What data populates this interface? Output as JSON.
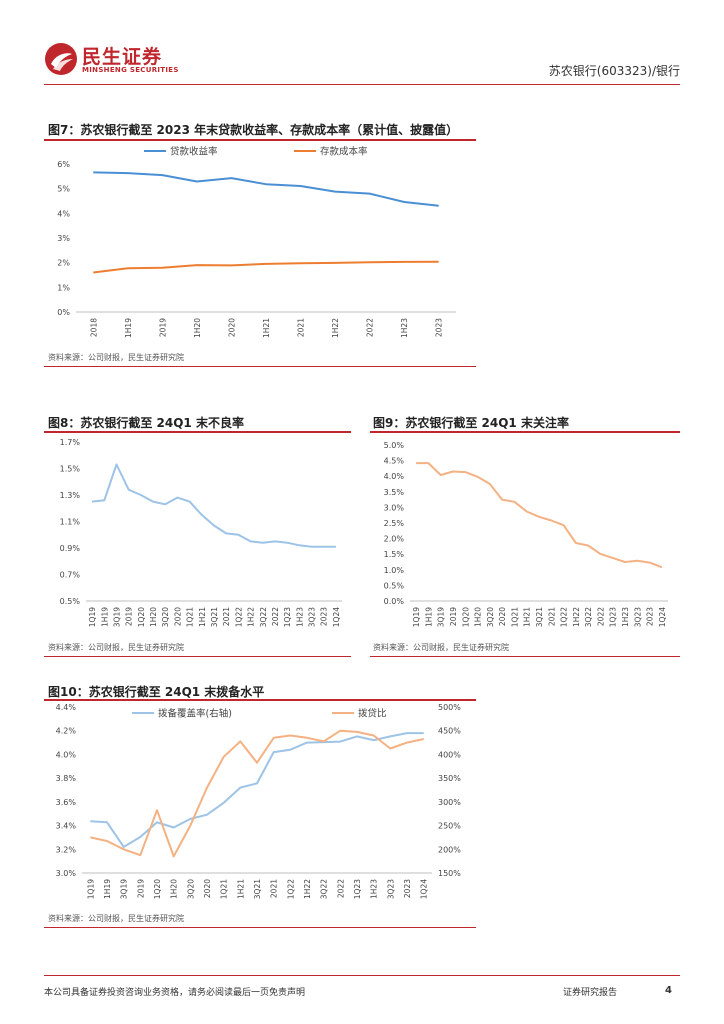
{
  "header": {
    "brand_cn": "民生证券",
    "brand_en": "MINSHENG SECURITIES",
    "report_subject": "苏农银行(603323)/银行",
    "brand_color": "#c0272d"
  },
  "figures": {
    "fig7": {
      "title": "图7：苏农银行截至 2023 年末贷款收益率、存款成本率（累计值、披露值）",
      "source": "资料来源：公司财报，民生证券研究院"
    },
    "fig8": {
      "title": "图8：苏农银行截至 24Q1 末不良率",
      "source": "资料来源：公司财报，民生证券研究院"
    },
    "fig9": {
      "title": "图9：苏农银行截至 24Q1 末关注率",
      "source": "资料来源：公司财报，民生证券研究院"
    },
    "fig10": {
      "title": "图10：苏农银行截至 24Q1 末拨备水平",
      "source": "资料来源：公司财报，民生证券研究院"
    }
  },
  "footer": {
    "disclaimer": "本公司具备证券投资咨询业务资格，请务必阅读最后一页免责声明",
    "report_type": "证券研究报告",
    "page_number": "4"
  },
  "chart_data": [
    {
      "id": "fig7",
      "type": "line",
      "title": "图7：苏农银行截至 2023 年末贷款收益率、存款成本率（累计值、披露值）",
      "categories": [
        "2018",
        "1H19",
        "2019",
        "1H20",
        "2020",
        "1H21",
        "2021",
        "1H22",
        "2022",
        "1H23",
        "2023"
      ],
      "ylim": [
        0,
        6
      ],
      "yticks": [
        0,
        1,
        2,
        3,
        4,
        5,
        6
      ],
      "ytick_suffix": "%",
      "legend_position": "top",
      "series": [
        {
          "name": "贷款收益率",
          "color": "#4a8fd4",
          "axis": "left",
          "values": [
            5.66,
            5.63,
            5.55,
            5.29,
            5.43,
            5.18,
            5.11,
            4.88,
            4.8,
            4.46,
            4.31
          ]
        },
        {
          "name": "存款成本率",
          "color": "#ed7d31",
          "axis": "left",
          "values": [
            1.6,
            1.77,
            1.79,
            1.9,
            1.89,
            1.95,
            1.98,
            1.99,
            2.02,
            2.03,
            2.04
          ]
        }
      ]
    },
    {
      "id": "fig8",
      "type": "line",
      "title": "图8：苏农银行截至 24Q1 末不良率",
      "categories": [
        "1Q19",
        "1H19",
        "3Q19",
        "2019",
        "1Q20",
        "1H20",
        "3Q20",
        "2020",
        "1Q21",
        "1H21",
        "3Q21",
        "2021",
        "1Q22",
        "1H22",
        "3Q22",
        "2022",
        "1Q23",
        "1H23",
        "3Q23",
        "2023",
        "1Q24"
      ],
      "ylim": [
        0.5,
        1.7
      ],
      "yticks": [
        "0.5%",
        "0.7%",
        "0.9%",
        "1.1%",
        "1.3%",
        "1.5%",
        "1.7%"
      ],
      "ytick_values": [
        0.5,
        0.7,
        0.9,
        1.1,
        1.3,
        1.5,
        1.7
      ],
      "series": [
        {
          "name": "不良率",
          "color": "#9dc3e6",
          "values": [
            1.25,
            1.26,
            1.53,
            1.34,
            1.3,
            1.25,
            1.23,
            1.28,
            1.25,
            1.15,
            1.07,
            1.01,
            1.0,
            0.95,
            0.94,
            0.95,
            0.94,
            0.92,
            0.91,
            0.91,
            0.91
          ]
        }
      ]
    },
    {
      "id": "fig9",
      "type": "line",
      "title": "图9：苏农银行截至 24Q1 末关注率",
      "categories": [
        "1Q19",
        "1H19",
        "3Q19",
        "2019",
        "1Q20",
        "1H20",
        "3Q20",
        "2020",
        "1Q21",
        "1H21",
        "3Q21",
        "2021",
        "1Q22",
        "1H22",
        "3Q22",
        "2022",
        "1Q23",
        "1H23",
        "3Q23",
        "2023",
        "1Q24"
      ],
      "ylim": [
        0,
        5
      ],
      "yticks": [
        "0.0%",
        "0.5%",
        "1.0%",
        "1.5%",
        "2.0%",
        "2.5%",
        "3.0%",
        "3.5%",
        "4.0%",
        "4.5%",
        "5.0%"
      ],
      "ytick_values": [
        0,
        0.5,
        1.0,
        1.5,
        2.0,
        2.5,
        3.0,
        3.5,
        4.0,
        4.5,
        5.0
      ],
      "series": [
        {
          "name": "关注率",
          "color": "#f4b183",
          "values": [
            4.42,
            4.42,
            4.04,
            4.15,
            4.13,
            3.98,
            3.75,
            3.25,
            3.18,
            2.87,
            2.7,
            2.58,
            2.43,
            1.86,
            1.78,
            1.51,
            1.38,
            1.25,
            1.29,
            1.23,
            1.08
          ]
        }
      ]
    },
    {
      "id": "fig10",
      "type": "line",
      "title": "图10：苏农银行截至 24Q1 末拨备水平",
      "categories": [
        "1Q19",
        "1H19",
        "3Q19",
        "2019",
        "1Q20",
        "1H20",
        "3Q20",
        "2020",
        "1Q21",
        "1H21",
        "3Q21",
        "2021",
        "1Q22",
        "1H22",
        "3Q22",
        "2022",
        "1Q23",
        "1H23",
        "3Q23",
        "2023",
        "1Q24"
      ],
      "ylim_left": [
        3.0,
        4.4
      ],
      "yticks_left": [
        "3.0%",
        "3.2%",
        "3.4%",
        "3.6%",
        "3.8%",
        "4.0%",
        "4.2%",
        "4.4%"
      ],
      "ytick_values_left": [
        3.0,
        3.2,
        3.4,
        3.6,
        3.8,
        4.0,
        4.2,
        4.4
      ],
      "ylim_right": [
        150,
        500
      ],
      "yticks_right": [
        "150%",
        "200%",
        "250%",
        "300%",
        "350%",
        "400%",
        "450%",
        "500%"
      ],
      "ytick_values_right": [
        150,
        200,
        250,
        300,
        350,
        400,
        450,
        500
      ],
      "legend_position": "top",
      "series": [
        {
          "name": "拨备覆盖率(右轴)",
          "color": "#9dc3e6",
          "axis": "right",
          "values": [
            259,
            257,
            205,
            226,
            257,
            246,
            264,
            273,
            298,
            330,
            339,
            405,
            410,
            425,
            426,
            427,
            438,
            430,
            438,
            445,
            445
          ]
        },
        {
          "name": "拨贷比",
          "color": "#f4b183",
          "axis": "left",
          "values": [
            3.3,
            3.27,
            3.2,
            3.15,
            3.53,
            3.14,
            3.4,
            3.72,
            3.98,
            4.11,
            3.93,
            4.14,
            4.16,
            4.14,
            4.11,
            4.2,
            4.19,
            4.16,
            4.05,
            4.1,
            4.13
          ]
        }
      ]
    }
  ]
}
